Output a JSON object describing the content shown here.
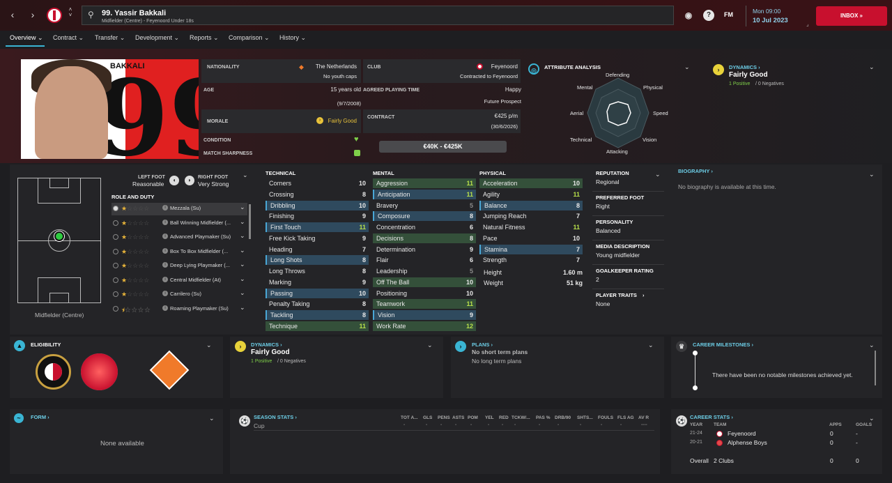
{
  "header": {
    "player_title": "99. Yassir Bakkali",
    "player_sub": "Midfielder (Centre) - Feyenoord Under 18s",
    "fm_label": "FM",
    "date_day": "Mon 09:00",
    "date": "10 Jul 2023",
    "inbox": "INBOX"
  },
  "tabs": [
    "Overview",
    "Contract",
    "Transfer",
    "Development",
    "Reports",
    "Comparison",
    "History"
  ],
  "profile": {
    "surname": "BAKKALI",
    "number": "99",
    "nationality_label": "NATIONALITY",
    "nationality": "The Netherlands",
    "youth_caps": "No youth caps",
    "club_label": "CLUB",
    "club": "Feyenoord",
    "club_contract": "Contracted to Feyenoord",
    "age_label": "AGE",
    "age": "15 years old",
    "dob": "(9/7/2008)",
    "apt_label": "AGREED PLAYING TIME",
    "apt": "Happy",
    "apt_sub": "Future Prospect",
    "morale_label": "MORALE",
    "morale": "Fairly Good",
    "contract_label": "CONTRACT",
    "wage": "€425 p/m",
    "contract_end": "(30/6/2026)",
    "condition_label": "CONDITION",
    "sharpness_label": "MATCH SHARPNESS",
    "value": "€40K - €425K"
  },
  "attr_analysis": {
    "title": "ATTRIBUTE ANALYSIS",
    "labels": [
      "Defending",
      "Physical",
      "Speed",
      "Vision",
      "Attacking",
      "Technical",
      "Aerial",
      "Mental"
    ]
  },
  "dynamics_top": {
    "title": "DYNAMICS",
    "status": "Fairly Good",
    "positives": "1 Positive",
    "negatives": "0 Negatives"
  },
  "feet": {
    "left_label": "LEFT FOOT",
    "left": "Reasonable",
    "right_label": "RIGHT FOOT",
    "right": "Very Strong"
  },
  "roles": {
    "title": "ROLE AND DUTY",
    "position": "Midfielder (Centre)",
    "items": [
      "Mezzala (Su)",
      "Ball Winning Midfielder (...",
      "Advanced Playmaker (Su)",
      "Box To Box Midfielder (...",
      "Deep Lying Playmaker (...",
      "Central Midfielder (At)",
      "Carrilero (Su)",
      "Roaming Playmaker (Su)"
    ]
  },
  "technical": {
    "title": "TECHNICAL",
    "rows": [
      [
        "Corners",
        "10"
      ],
      [
        "Crossing",
        "8"
      ],
      [
        "Dribbling",
        "10"
      ],
      [
        "Finishing",
        "9"
      ],
      [
        "First Touch",
        "11"
      ],
      [
        "Free Kick Taking",
        "9"
      ],
      [
        "Heading",
        "7"
      ],
      [
        "Long Shots",
        "8"
      ],
      [
        "Long Throws",
        "8"
      ],
      [
        "Marking",
        "9"
      ],
      [
        "Passing",
        "10"
      ],
      [
        "Penalty Taking",
        "8"
      ],
      [
        "Tackling",
        "8"
      ],
      [
        "Technique",
        "11"
      ]
    ]
  },
  "mental": {
    "title": "MENTAL",
    "rows": [
      [
        "Aggression",
        "11"
      ],
      [
        "Anticipation",
        "11"
      ],
      [
        "Bravery",
        "5"
      ],
      [
        "Composure",
        "8"
      ],
      [
        "Concentration",
        "6"
      ],
      [
        "Decisions",
        "8"
      ],
      [
        "Determination",
        "9"
      ],
      [
        "Flair",
        "6"
      ],
      [
        "Leadership",
        "5"
      ],
      [
        "Off The Ball",
        "10"
      ],
      [
        "Positioning",
        "10"
      ],
      [
        "Teamwork",
        "11"
      ],
      [
        "Vision",
        "9"
      ],
      [
        "Work Rate",
        "12"
      ]
    ]
  },
  "physical": {
    "title": "PHYSICAL",
    "rows": [
      [
        "Acceleration",
        "10"
      ],
      [
        "Agility",
        "11"
      ],
      [
        "Balance",
        "8"
      ],
      [
        "Jumping Reach",
        "7"
      ],
      [
        "Natural Fitness",
        "11"
      ],
      [
        "Pace",
        "10"
      ],
      [
        "Stamina",
        "7"
      ],
      [
        "Strength",
        "7"
      ]
    ],
    "height_label": "Height",
    "height": "1.60 m",
    "weight_label": "Weight",
    "weight": "51 kg"
  },
  "info": {
    "reputation_label": "REPUTATION",
    "reputation": "Regional",
    "foot_label": "PREFERRED FOOT",
    "foot": "Right",
    "personality_label": "PERSONALITY",
    "personality": "Balanced",
    "media_label": "MEDIA DESCRIPTION",
    "media": "Young midfielder",
    "gk_label": "GOALKEEPER RATING",
    "gk": "2",
    "traits_label": "PLAYER TRAITS",
    "traits": "None"
  },
  "biography": {
    "title": "BIOGRAPHY",
    "text": "No biography is available at this time."
  },
  "eligibility": {
    "title": "ELIGIBILITY"
  },
  "dynamics_bottom": {
    "title": "DYNAMICS",
    "status": "Fairly Good",
    "positives": "1 Positive",
    "negatives": "0 Negatives"
  },
  "plans": {
    "title": "PLANS",
    "short": "No short term plans",
    "long": "No long term plans"
  },
  "milestones": {
    "title": "CAREER MILESTONES",
    "text": "There have been no notable milestones achieved yet."
  },
  "form": {
    "title": "FORM",
    "text": "None available"
  },
  "season_stats": {
    "title": "SEASON STATS",
    "columns": [
      "TOT A...",
      "GLS",
      "PENS",
      "ASTS",
      "POM",
      "YEL",
      "RED",
      "TCKW/...",
      "PAS %",
      "DRB/90",
      "SHTS...",
      "FOULS",
      "FLS AG",
      "AV R"
    ],
    "row_label": "Cup",
    "row_values": [
      "-",
      "-",
      "-",
      "-",
      "-",
      "-",
      "-",
      "-",
      "-",
      "-",
      "-",
      "-",
      "-",
      "----"
    ]
  },
  "career": {
    "title": "CAREER STATS",
    "h_year": "YEAR",
    "h_team": "TEAM",
    "h_apps": "APPS",
    "h_goals": "GOALS",
    "rows": [
      [
        "21-24",
        "Feyenoord",
        "0",
        "-"
      ],
      [
        "20-21",
        "Alphense Boys",
        "0",
        "-"
      ]
    ],
    "overall": "Overall",
    "overall_clubs": "2 Clubs",
    "overall_apps": "0",
    "overall_goals": "0"
  },
  "colors": {
    "accent": "#3ab5d4",
    "brand": "#c8102e",
    "green": "#b8e04a"
  }
}
